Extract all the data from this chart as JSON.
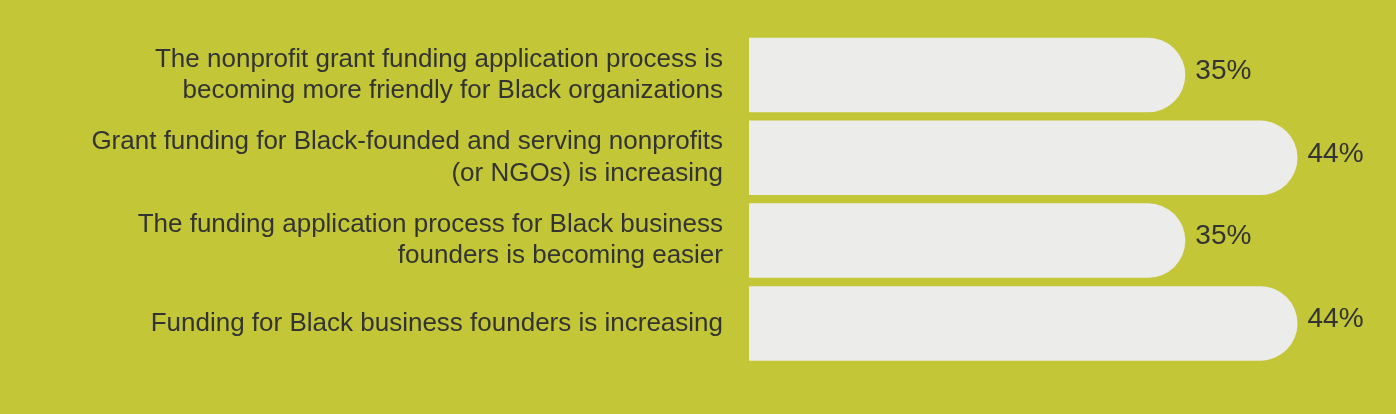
{
  "chart_data": {
    "type": "bar",
    "orientation": "horizontal",
    "categories": [
      "The nonprofit grant funding application process is becoming more friendly for Black organizations",
      "Grant funding for Black-founded and serving nonprofits (or NGOs) is increasing",
      "The funding application process for Black business founders is becoming easier",
      "Funding for Black business founders is increasing"
    ],
    "values": [
      35,
      44,
      35,
      44
    ],
    "value_labels": [
      "35%",
      "44%",
      "35%",
      "44%"
    ],
    "color": "#ececea",
    "legend": false
  }
}
